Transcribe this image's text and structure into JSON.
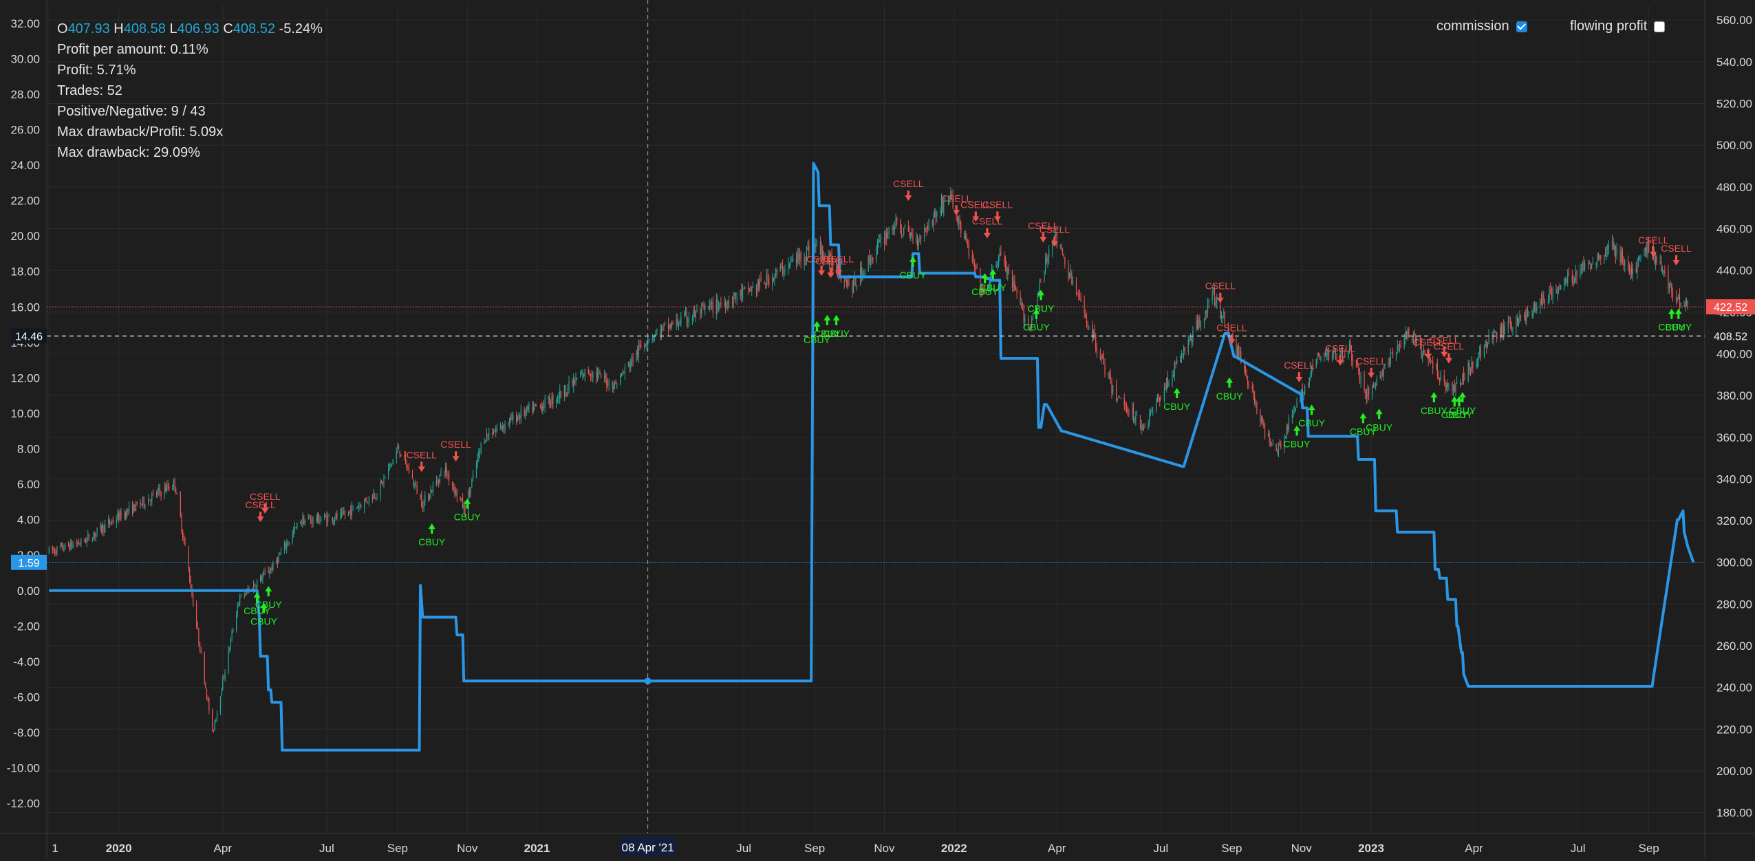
{
  "legend": {
    "o_label": "O",
    "o": "407.93",
    "h_label": "H",
    "h": "408.58",
    "l_label": "L",
    "l": "406.93",
    "c_label": "C",
    "c": "408.52",
    "change": "-5.24%",
    "stats": [
      "Profit per amount: 0.11%",
      "Profit: 5.71%",
      "Trades: 52",
      "Positive/Negative: 9 / 43",
      "Max drawback/Profit: 5.09x",
      "Max drawback: 29.09%"
    ]
  },
  "toggles": {
    "commission": {
      "label": "commission",
      "checked": true
    },
    "flowing_profit": {
      "label": "flowing profit",
      "checked": false
    }
  },
  "colors": {
    "background": "#1e1e1e",
    "grid": "#2c2c2c",
    "up": "#26a69a",
    "down": "#ef5350",
    "profit_line": "#2a97e6",
    "buy_marker": "#22ee22",
    "sell_marker": "#ef5350",
    "axis_text": "#d9d9d9"
  },
  "crosshair": {
    "x_label": "08 Apr '21",
    "left_y_label": "14.46",
    "right_y_label": "408.52"
  },
  "badges": {
    "last_price": "422.52",
    "profit_value": "1.59"
  },
  "chart_data": [
    {
      "type": "candlestick",
      "series_name": "",
      "axis": "right",
      "ylim": [
        170,
        567
      ],
      "y_ticks": [
        "180.00",
        "200.00",
        "220.00",
        "240.00",
        "260.00",
        "280.00",
        "300.00",
        "320.00",
        "340.00",
        "360.00",
        "380.00",
        "400.00",
        "420.00",
        "440.00",
        "460.00",
        "480.00",
        "500.00",
        "520.00",
        "540.00",
        "560.00"
      ],
      "x_ticks": [
        "1",
        "2020",
        "Apr",
        "Jul",
        "Sep",
        "Nov",
        "2021",
        "Jul",
        "Sep",
        "Nov",
        "2022",
        "Apr",
        "Jul",
        "Sep",
        "Nov",
        "2023",
        "Apr",
        "Jul",
        "Sep"
      ],
      "close_path": {
        "dates": [
          "2019-11-01",
          "2019-12-01",
          "2020-01-01",
          "2020-02-19",
          "2020-03-01",
          "2020-03-23",
          "2020-04-15",
          "2020-05-15",
          "2020-06-08",
          "2020-07-15",
          "2020-08-15",
          "2020-09-02",
          "2020-09-23",
          "2020-10-12",
          "2020-10-30",
          "2020-11-15",
          "2020-12-15",
          "2021-01-15",
          "2021-02-15",
          "2021-03-10",
          "2021-04-08",
          "2021-05-15",
          "2021-06-15",
          "2021-07-15",
          "2021-08-15",
          "2021-09-02",
          "2021-10-04",
          "2021-11-08",
          "2021-11-30",
          "2021-12-28",
          "2022-01-27",
          "2022-02-10",
          "2022-03-08",
          "2022-03-29",
          "2022-05-10",
          "2022-05-20",
          "2022-06-16",
          "2022-08-16",
          "2022-09-13",
          "2022-09-30",
          "2022-10-12",
          "2022-11-15",
          "2022-12-13",
          "2022-12-28",
          "2023-02-02",
          "2023-03-13",
          "2023-04-15",
          "2023-05-15",
          "2023-06-15",
          "2023-07-31",
          "2023-08-18",
          "2023-09-01",
          "2023-09-26",
          "2023-10-05"
        ],
        "close": [
          305,
          310,
          322,
          338,
          300,
          218,
          282,
          298,
          320,
          322,
          334,
          355,
          328,
          345,
          325,
          360,
          370,
          378,
          392,
          385,
          408,
          418,
          425,
          433,
          445,
          452,
          432,
          462,
          455,
          476,
          428,
          448,
          412,
          458,
          398,
          382,
          365,
          428,
          392,
          362,
          355,
          398,
          402,
          380,
          410,
          382,
          407,
          418,
          432,
          452,
          438,
          452,
          426,
          425
        ]
      },
      "markers": [
        {
          "date": "2020-05-04",
          "label": "CSELL",
          "side": "sell",
          "value": 318
        },
        {
          "date": "2020-05-08",
          "label": "CSELL",
          "side": "sell",
          "value": 322
        },
        {
          "date": "2020-05-01",
          "label": "CBUY",
          "side": "buy",
          "value": 287
        },
        {
          "date": "2020-05-07",
          "label": "CBUY",
          "side": "buy",
          "value": 282
        },
        {
          "date": "2020-05-11",
          "label": "CBUY",
          "side": "buy",
          "value": 290
        },
        {
          "date": "2020-09-22",
          "label": "CSELL",
          "side": "sell",
          "value": 342
        },
        {
          "date": "2020-10-01",
          "label": "CBUY",
          "side": "buy",
          "value": 320
        },
        {
          "date": "2020-10-22",
          "label": "CSELL",
          "side": "sell",
          "value": 347
        },
        {
          "date": "2020-11-01",
          "label": "CBUY",
          "side": "buy",
          "value": 332
        },
        {
          "date": "2021-09-07",
          "label": "CSELL",
          "side": "sell",
          "value": 436
        },
        {
          "date": "2021-09-15",
          "label": "CSELL",
          "side": "sell",
          "value": 435
        },
        {
          "date": "2021-09-22",
          "label": "CSELL",
          "side": "sell",
          "value": 436
        },
        {
          "date": "2021-09-03",
          "label": "CBUY",
          "side": "buy",
          "value": 417
        },
        {
          "date": "2021-09-12",
          "label": "CBUY",
          "side": "buy",
          "value": 420
        },
        {
          "date": "2021-09-20",
          "label": "CBUY",
          "side": "buy",
          "value": 420
        },
        {
          "date": "2021-11-22",
          "label": "CSELL",
          "side": "sell",
          "value": 472
        },
        {
          "date": "2021-11-26",
          "label": "CBUY",
          "side": "buy",
          "value": 448
        },
        {
          "date": "2022-01-03",
          "label": "CSELL",
          "side": "sell",
          "value": 465
        },
        {
          "date": "2022-01-20",
          "label": "CSELL",
          "side": "sell",
          "value": 462
        },
        {
          "date": "2022-01-30",
          "label": "CSELL",
          "side": "sell",
          "value": 454
        },
        {
          "date": "2022-02-08",
          "label": "CSELL",
          "side": "sell",
          "value": 462
        },
        {
          "date": "2022-01-28",
          "label": "CBUY",
          "side": "buy",
          "value": 440
        },
        {
          "date": "2022-02-04",
          "label": "CBUY",
          "side": "buy",
          "value": 442
        },
        {
          "date": "2022-03-20",
          "label": "CSELL",
          "side": "sell",
          "value": 452
        },
        {
          "date": "2022-03-30",
          "label": "CSELL",
          "side": "sell",
          "value": 450
        },
        {
          "date": "2022-03-14",
          "label": "CBUY",
          "side": "buy",
          "value": 423
        },
        {
          "date": "2022-03-18",
          "label": "CBUY",
          "side": "buy",
          "value": 432
        },
        {
          "date": "2022-08-22",
          "label": "CSELL",
          "side": "sell",
          "value": 423
        },
        {
          "date": "2022-09-01",
          "label": "CSELL",
          "side": "sell",
          "value": 403
        },
        {
          "date": "2022-07-15",
          "label": "CBUY",
          "side": "buy",
          "value": 385
        },
        {
          "date": "2022-08-30",
          "label": "CBUY",
          "side": "buy",
          "value": 390
        },
        {
          "date": "2022-10-30",
          "label": "CSELL",
          "side": "sell",
          "value": 385
        },
        {
          "date": "2022-10-28",
          "label": "CBUY",
          "side": "buy",
          "value": 367
        },
        {
          "date": "2022-11-10",
          "label": "CBUY",
          "side": "buy",
          "value": 377
        },
        {
          "date": "2022-12-05",
          "label": "CSELL",
          "side": "sell",
          "value": 393
        },
        {
          "date": "2023-01-01",
          "label": "CSELL",
          "side": "sell",
          "value": 387
        },
        {
          "date": "2022-12-25",
          "label": "CBUY",
          "side": "buy",
          "value": 373
        },
        {
          "date": "2023-01-08",
          "label": "CBUY",
          "side": "buy",
          "value": 375
        },
        {
          "date": "2023-02-20",
          "label": "CSELL",
          "side": "sell",
          "value": 396
        },
        {
          "date": "2023-03-06",
          "label": "CSELL",
          "side": "sell",
          "value": 397
        },
        {
          "date": "2023-03-10",
          "label": "CSELL",
          "side": "sell",
          "value": 394
        },
        {
          "date": "2023-02-25",
          "label": "CBUY",
          "side": "buy",
          "value": 383
        },
        {
          "date": "2023-03-15",
          "label": "CBUY",
          "side": "buy",
          "value": 381
        },
        {
          "date": "2023-03-19",
          "label": "CBUY",
          "side": "buy",
          "value": 381
        },
        {
          "date": "2023-03-22",
          "label": "CBUY",
          "side": "buy",
          "value": 383
        },
        {
          "date": "2023-09-05",
          "label": "CSELL",
          "side": "sell",
          "value": 445
        },
        {
          "date": "2023-09-25",
          "label": "CSELL",
          "side": "sell",
          "value": 441
        },
        {
          "date": "2023-09-21",
          "label": "CBUY",
          "side": "buy",
          "value": 423
        },
        {
          "date": "2023-09-27",
          "label": "CBUY",
          "side": "buy",
          "value": 423
        }
      ]
    },
    {
      "type": "line",
      "series_name": "",
      "axis": "left",
      "ylim": [
        -13.7,
        33
      ],
      "y_ticks": [
        "-12.00",
        "-10.00",
        "-8.00",
        "-6.00",
        "-4.00",
        "-2.00",
        "0.00",
        "2.00",
        "4.00",
        "6.00",
        "8.00",
        "10.00",
        "12.00",
        "14.00",
        "16.00",
        "18.00",
        "20.00",
        "22.00",
        "24.00",
        "26.00",
        "28.00",
        "30.00",
        "32.00"
      ],
      "x": [
        "2019-11-01",
        "2020-05-01",
        "2020-05-03",
        "2020-05-04",
        "2020-05-10",
        "2020-05-11",
        "2020-05-13",
        "2020-05-14",
        "2020-05-22",
        "2020-05-23",
        "2020-09-20",
        "2020-09-21",
        "2020-09-23",
        "2020-09-25",
        "2020-10-22",
        "2020-10-23",
        "2020-10-28",
        "2020-10-29",
        "2021-08-29",
        "2021-08-31",
        "2021-09-04",
        "2021-09-05",
        "2021-09-14",
        "2021-09-15",
        "2021-09-22",
        "2021-09-23",
        "2021-09-30",
        "2021-10-01",
        "2021-11-25",
        "2021-11-26",
        "2021-12-01",
        "2021-12-02",
        "2022-01-19",
        "2022-01-20",
        "2022-01-28",
        "2022-01-29",
        "2022-02-01",
        "2022-02-02",
        "2022-02-10",
        "2022-02-11",
        "2022-03-15",
        "2022-03-16",
        "2022-03-18",
        "2022-03-21",
        "2022-03-23",
        "2022-04-05",
        "2022-04-06",
        "2022-07-20",
        "2022-07-21",
        "2022-08-26",
        "2022-08-29",
        "2022-09-03",
        "2022-09-04",
        "2022-10-31",
        "2022-11-01",
        "2022-11-02",
        "2022-11-06",
        "2022-11-07",
        "2022-12-20",
        "2022-12-21",
        "2023-01-04",
        "2023-01-05",
        "2023-01-23",
        "2023-01-24",
        "2023-02-25",
        "2023-02-26",
        "2023-03-01",
        "2023-03-02",
        "2023-03-08",
        "2023-03-09",
        "2023-03-16",
        "2023-03-17",
        "2023-03-18",
        "2023-03-21",
        "2023-03-22",
        "2023-03-23",
        "2023-03-27",
        "2023-09-04",
        "2023-09-05",
        "2023-09-26",
        "2023-09-27",
        "2023-10-01",
        "2023-10-02",
        "2023-10-05",
        "2023-10-10"
      ],
      "y": [
        0,
        0,
        -1.5,
        -3.7,
        -3.7,
        -5.6,
        -5.6,
        -6.3,
        -6.3,
        -9.0,
        -9.0,
        0.3,
        -1.5,
        -1.5,
        -1.5,
        -2.5,
        -2.5,
        -5.1,
        -5.1,
        24.1,
        23.6,
        21.7,
        21.7,
        19.5,
        19.5,
        17.7,
        17.7,
        17.7,
        17.7,
        19.0,
        19.0,
        17.9,
        17.9,
        17.7,
        17.7,
        17.6,
        17.6,
        17.5,
        17.5,
        13.1,
        13.1,
        9.2,
        9.2,
        10.5,
        10.5,
        9.0,
        9.0,
        7.0,
        7.0,
        14.5,
        14.5,
        13.2,
        13.2,
        11.1,
        11.1,
        10.3,
        10.3,
        8.7,
        8.7,
        7.4,
        7.4,
        4.5,
        4.5,
        3.3,
        3.3,
        1.2,
        1.2,
        0.7,
        0.7,
        -0.5,
        -0.5,
        -2.0,
        -2.0,
        -3.5,
        -3.5,
        -4.7,
        -5.4,
        -5.4,
        -4.9,
        4.0,
        4.0,
        4.5,
        3.3,
        2.5,
        1.6
      ]
    }
  ]
}
